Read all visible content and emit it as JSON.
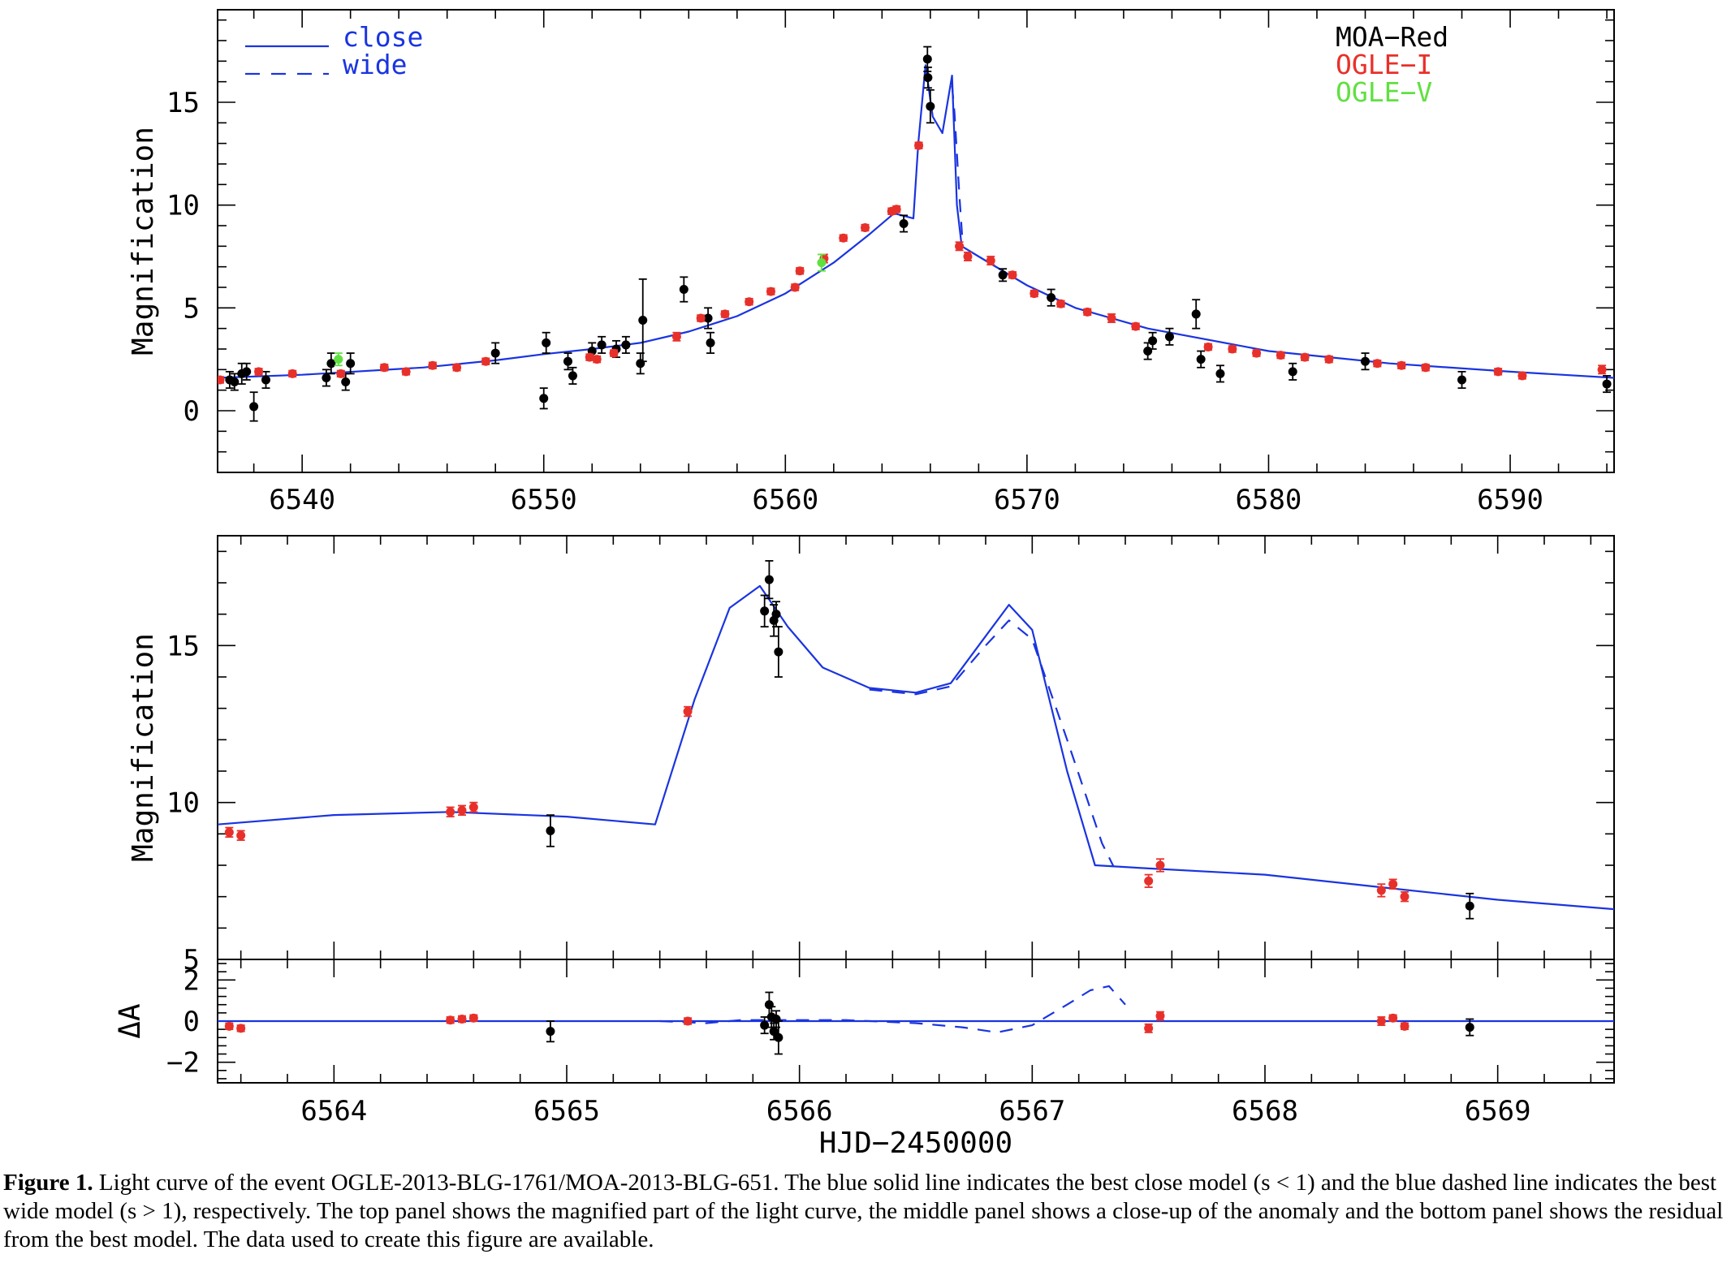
{
  "legend": {
    "models": [
      {
        "name": "close",
        "style": "solid"
      },
      {
        "name": "wide",
        "style": "dashed"
      }
    ],
    "datasets": [
      {
        "name": "MOA−Red",
        "color": "#000000"
      },
      {
        "name": "OGLE−I",
        "color": "#e8302a"
      },
      {
        "name": "OGLE−V",
        "color": "#60e040"
      }
    ]
  },
  "colors": {
    "model": "#1a34e0",
    "moa": "#000000",
    "ogle_i": "#e8302a",
    "ogle_v": "#60e040"
  },
  "caption": {
    "label": "Figure 1.",
    "text": "Light curve of the event OGLE-2013-BLG-1761/MOA-2013-BLG-651. The blue solid line indicates the best close model (s < 1) and the blue dashed line indicates the best wide model (s > 1), respectively. The top panel shows the magnified part of the light curve, the middle panel shows a close-up of the anomaly and the bottom panel shows the residual from the best model. The data used to create this figure are available."
  },
  "chart_data": [
    {
      "type": "scatter",
      "panel": "top",
      "title": "",
      "xlabel": "",
      "ylabel": "Magnification",
      "xlim": [
        6536.5,
        6594.3
      ],
      "ylim": [
        -3,
        19.5
      ],
      "xticks": [
        6540,
        6550,
        6560,
        6570,
        6580,
        6590
      ],
      "yticks": [
        0,
        5,
        10,
        15
      ],
      "series": [
        {
          "name": "close",
          "kind": "line",
          "style": "solid",
          "x": [
            6536.5,
            6540,
            6545,
            6548,
            6550,
            6552,
            6554,
            6556,
            6558,
            6560,
            6562,
            6563.5,
            6564.5,
            6565.3,
            6565.5,
            6565.8,
            6566.1,
            6566.5,
            6566.9,
            6567.1,
            6567.3,
            6568,
            6570,
            6572,
            6575,
            6580,
            6585,
            6590,
            6594.3
          ],
          "y": [
            1.6,
            1.75,
            2.1,
            2.45,
            2.75,
            3.0,
            3.3,
            3.85,
            4.6,
            5.7,
            7.2,
            8.6,
            9.6,
            9.35,
            13,
            16.8,
            14.3,
            13.5,
            16.3,
            10,
            8.0,
            7.5,
            6.1,
            5.0,
            4.0,
            2.9,
            2.3,
            1.9,
            1.6
          ]
        },
        {
          "name": "wide",
          "kind": "line",
          "style": "dashed",
          "x": [
            6566.9,
            6567.0,
            6567.2,
            6567.35
          ],
          "y": [
            15.8,
            14.5,
            10.5,
            7.95
          ]
        },
        {
          "name": "MOA−Red",
          "kind": "points",
          "x": [
            6537,
            6537.2,
            6537.5,
            6537.7,
            6538,
            6538.5,
            6541,
            6541.2,
            6541.8,
            6542,
            6548,
            6550,
            6550.1,
            6551,
            6551.2,
            6552,
            6552.4,
            6553,
            6553.4,
            6554,
            6554.1,
            6555.8,
            6556.8,
            6556.9,
            6564.9,
            6565.88,
            6565.9,
            6566,
            6569,
            6571,
            6575,
            6575.2,
            6575.9,
            6577,
            6577.2,
            6578,
            6581,
            6584,
            6588,
            6594
          ],
          "y": [
            1.5,
            1.4,
            1.8,
            1.9,
            0.2,
            1.5,
            1.6,
            2.3,
            1.4,
            2.3,
            2.8,
            0.6,
            3.3,
            2.4,
            1.7,
            2.9,
            3.2,
            3.0,
            3.2,
            2.3,
            4.4,
            5.9,
            4.5,
            3.3,
            9.1,
            17.1,
            16.2,
            14.8,
            6.6,
            5.5,
            2.9,
            3.4,
            3.6,
            4.7,
            2.5,
            1.8,
            1.9,
            2.4,
            1.5,
            1.3
          ],
          "err": [
            0.4,
            0.4,
            0.5,
            0.4,
            0.7,
            0.4,
            0.4,
            0.5,
            0.4,
            0.5,
            0.5,
            0.5,
            0.5,
            0.4,
            0.4,
            0.4,
            0.4,
            0.4,
            0.4,
            0.5,
            2.0,
            0.6,
            0.5,
            0.5,
            0.4,
            0.6,
            0.5,
            0.8,
            0.3,
            0.4,
            0.4,
            0.4,
            0.4,
            0.7,
            0.4,
            0.4,
            0.4,
            0.4,
            0.4,
            0.4
          ]
        },
        {
          "name": "OGLE−I",
          "kind": "points",
          "x": [
            6536.6,
            6538.2,
            6539.6,
            6541.6,
            6543.4,
            6544.3,
            6545.4,
            6546.4,
            6547.6,
            6551.9,
            6552.2,
            6552.9,
            6555.5,
            6556.5,
            6557.5,
            6558.5,
            6559.4,
            6560.4,
            6560.6,
            6561.6,
            6562.4,
            6563.3,
            6564.4,
            6564.6,
            6565.52,
            6567.2,
            6567.55,
            6568.5,
            6569.4,
            6570.3,
            6571.4,
            6572.5,
            6573.5,
            6574.5,
            6577.5,
            6578.5,
            6579.5,
            6580.5,
            6581.5,
            6582.5,
            6584.5,
            6585.5,
            6586.5,
            6589.5,
            6590.5,
            6593.8
          ],
          "y": [
            1.5,
            1.9,
            1.8,
            1.8,
            2.1,
            1.9,
            2.2,
            2.1,
            2.4,
            2.6,
            2.5,
            2.8,
            3.6,
            4.5,
            4.7,
            5.3,
            5.8,
            6.0,
            6.8,
            7.4,
            8.4,
            8.9,
            9.7,
            9.8,
            12.9,
            8.0,
            7.5,
            7.3,
            6.6,
            5.7,
            5.2,
            4.8,
            4.5,
            4.1,
            3.1,
            3.0,
            2.8,
            2.7,
            2.6,
            2.5,
            2.3,
            2.2,
            2.1,
            1.9,
            1.7,
            2.0
          ],
          "err": [
            0.15,
            0.15,
            0.15,
            0.15,
            0.15,
            0.15,
            0.15,
            0.15,
            0.15,
            0.15,
            0.15,
            0.15,
            0.2,
            0.15,
            0.15,
            0.15,
            0.15,
            0.15,
            0.15,
            0.2,
            0.15,
            0.15,
            0.15,
            0.15,
            0.15,
            0.2,
            0.2,
            0.2,
            0.15,
            0.15,
            0.15,
            0.15,
            0.2,
            0.15,
            0.15,
            0.15,
            0.15,
            0.15,
            0.15,
            0.15,
            0.15,
            0.15,
            0.15,
            0.15,
            0.15,
            0.2
          ]
        },
        {
          "name": "OGLE−V",
          "kind": "points",
          "x": [
            6541.5,
            6561.5
          ],
          "y": [
            2.5,
            7.2
          ],
          "err": [
            0.3,
            0.4
          ]
        }
      ]
    },
    {
      "type": "scatter",
      "panel": "middle",
      "title": "",
      "xlabel": "",
      "ylabel": "Magnification",
      "xlim": [
        6563.5,
        6569.5
      ],
      "ylim": [
        5,
        18.5
      ],
      "xticks": [
        6564,
        6565,
        6566,
        6567,
        6568,
        6569
      ],
      "yticks": [
        5,
        10,
        15
      ],
      "series": [
        {
          "name": "close",
          "kind": "line",
          "style": "solid",
          "x": [
            6563.5,
            6564.0,
            6564.5,
            6565.0,
            6565.38,
            6565.55,
            6565.7,
            6565.83,
            6565.95,
            6566.1,
            6566.3,
            6566.5,
            6566.65,
            6566.8,
            6566.9,
            6567.0,
            6567.15,
            6567.27,
            6567.5,
            6568.0,
            6568.5,
            6569.0,
            6569.5
          ],
          "y": [
            9.3,
            9.6,
            9.7,
            9.55,
            9.3,
            13.3,
            16.2,
            16.9,
            15.6,
            14.3,
            13.65,
            13.5,
            13.8,
            15.3,
            16.3,
            15.5,
            11.0,
            8.0,
            7.9,
            7.7,
            7.3,
            6.9,
            6.6
          ]
        },
        {
          "name": "wide",
          "kind": "line",
          "style": "dashed",
          "x": [
            6566.3,
            6566.5,
            6566.65,
            6566.8,
            6566.9,
            6567.0,
            6567.15,
            6567.3,
            6567.35
          ],
          "y": [
            13.6,
            13.45,
            13.7,
            15.0,
            15.8,
            15.2,
            12.0,
            8.7,
            7.95
          ]
        },
        {
          "name": "MOA−Red",
          "kind": "points",
          "x": [
            6564.93,
            6565.85,
            6565.87,
            6565.89,
            6565.9,
            6565.91,
            6568.88
          ],
          "y": [
            9.1,
            16.1,
            17.1,
            15.8,
            16.0,
            14.8,
            6.7
          ],
          "err": [
            0.5,
            0.5,
            0.6,
            0.5,
            0.4,
            0.8,
            0.4
          ]
        },
        {
          "name": "OGLE−I",
          "kind": "points",
          "x": [
            6563.55,
            6563.6,
            6564.5,
            6564.55,
            6564.6,
            6565.52,
            6567.5,
            6567.55,
            6568.5,
            6568.55,
            6568.6
          ],
          "y": [
            9.05,
            8.95,
            9.7,
            9.75,
            9.85,
            12.9,
            7.5,
            8.0,
            7.2,
            7.4,
            7.0
          ],
          "err": [
            0.15,
            0.15,
            0.15,
            0.15,
            0.15,
            0.15,
            0.2,
            0.2,
            0.2,
            0.15,
            0.15
          ]
        }
      ]
    },
    {
      "type": "scatter",
      "panel": "bottom",
      "title": "",
      "xlabel": "HJD−2450000",
      "ylabel": "ΔA",
      "xlim": [
        6563.5,
        6569.5
      ],
      "ylim": [
        -3,
        3
      ],
      "xticks": [
        6564,
        6565,
        6566,
        6567,
        6568,
        6569
      ],
      "yticks": [
        -2,
        0,
        2
      ],
      "ytick_labels": [
        "−2",
        "0",
        "2"
      ],
      "series": [
        {
          "name": "close",
          "kind": "line",
          "style": "solid",
          "x": [
            6563.5,
            6569.5
          ],
          "y": [
            0,
            0
          ]
        },
        {
          "name": "wide",
          "kind": "line",
          "style": "dashed",
          "x": [
            6565.4,
            6565.6,
            6565.75,
            6566.2,
            6566.5,
            6566.7,
            6566.85,
            6567.0,
            6567.15,
            6567.25,
            6567.33,
            6567.4
          ],
          "y": [
            0,
            -0.1,
            0.05,
            0.05,
            -0.1,
            -0.3,
            -0.55,
            -0.2,
            0.8,
            1.5,
            1.7,
            0.8
          ]
        },
        {
          "name": "MOA−Red",
          "kind": "points",
          "x": [
            6564.93,
            6565.85,
            6565.87,
            6565.88,
            6565.89,
            6565.9,
            6565.91,
            6568.88
          ],
          "y": [
            -0.5,
            -0.2,
            0.8,
            0.2,
            -0.5,
            0.1,
            -0.8,
            -0.3
          ],
          "err": [
            0.5,
            0.4,
            0.6,
            0.5,
            0.4,
            0.4,
            0.8,
            0.4
          ]
        },
        {
          "name": "OGLE−I",
          "kind": "points",
          "x": [
            6563.55,
            6563.6,
            6564.5,
            6564.55,
            6564.6,
            6565.52,
            6567.5,
            6567.55,
            6568.5,
            6568.55,
            6568.6
          ],
          "y": [
            -0.25,
            -0.35,
            0.05,
            0.1,
            0.15,
            0.0,
            -0.35,
            0.25,
            0.0,
            0.15,
            -0.25
          ],
          "err": [
            0.15,
            0.15,
            0.15,
            0.15,
            0.15,
            0.15,
            0.2,
            0.2,
            0.2,
            0.15,
            0.15
          ]
        }
      ]
    }
  ]
}
